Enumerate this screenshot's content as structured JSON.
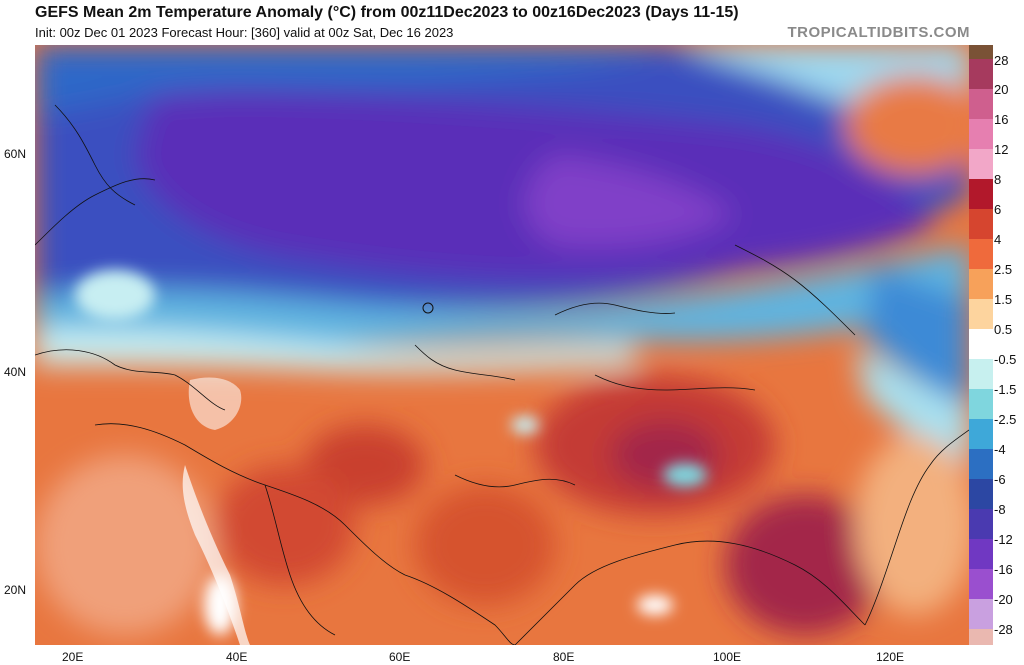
{
  "header": {
    "title": "GEFS Mean 2m Temperature Anomaly (°C) from 00z11Dec2023 to 00z16Dec2023 (Days 11-15)",
    "subtitle": "Init: 00z Dec 01 2023   Forecast Hour: [360]   valid at 00z Sat, Dec 16 2023",
    "brand": "TROPICALTIDBITS.COM"
  },
  "axes": {
    "lat_labels": [
      "60N",
      "40N",
      "20N"
    ],
    "lon_labels": [
      "20E",
      "40E",
      "60E",
      "80E",
      "100E",
      "120E"
    ]
  },
  "colorbar": {
    "labels": [
      "28",
      "20",
      "16",
      "12",
      "8",
      "6",
      "4",
      "2.5",
      "1.5",
      "0.5",
      "-0.5",
      "-1.5",
      "-2.5",
      "-4",
      "-6",
      "-8",
      "-12",
      "-16",
      "-20",
      "-28"
    ],
    "colors": [
      "#7a5236",
      "#a63a5e",
      "#cf5f8e",
      "#e67fb0",
      "#f2a7c8",
      "#b2182b",
      "#d6452f",
      "#ef6a3c",
      "#f7a15a",
      "#fdd49e",
      "#ffffff",
      "#c7f0ef",
      "#7fd6de",
      "#3ea8d9",
      "#2c6fc2",
      "#2c47a3",
      "#4a3ab0",
      "#7038c2",
      "#9a4fcf",
      "#c9a0e0",
      "#eab8b0"
    ]
  },
  "map": {
    "colors": {
      "deep_cold": "#5a2fb8",
      "cold": "#3b4fc0",
      "cool": "#3d8ad6",
      "light_cool": "#a8e0ef",
      "warm": "#f7a15a",
      "hot": "#d9482e",
      "very_hot": "#a3284a",
      "ocean": "#ffffff"
    }
  }
}
